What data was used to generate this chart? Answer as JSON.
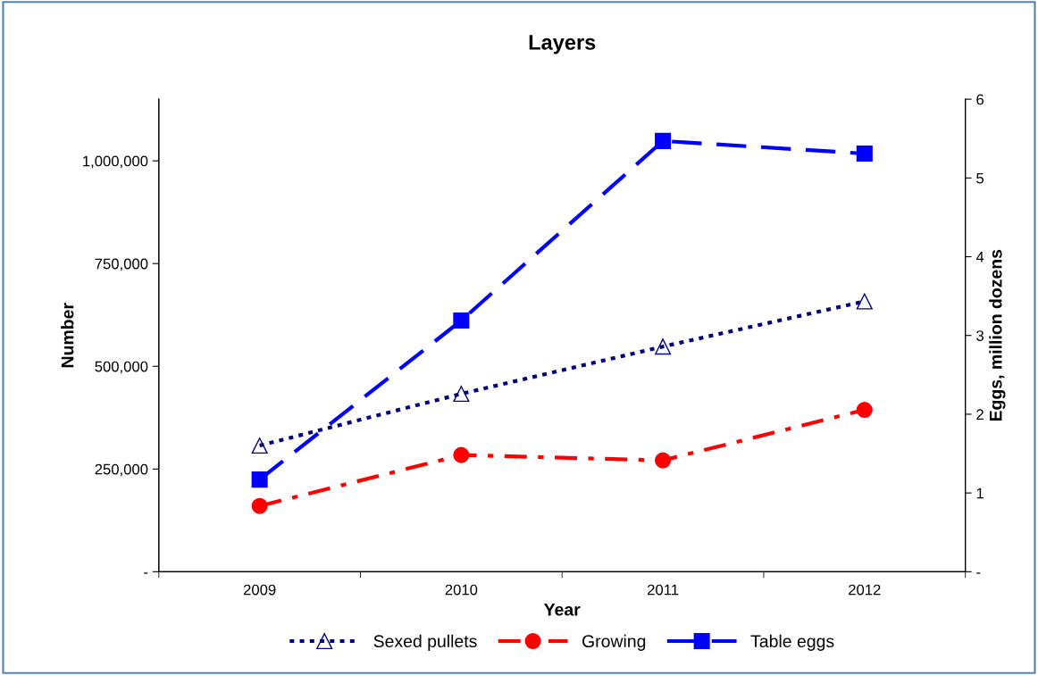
{
  "chart_data": {
    "type": "line",
    "title": "Layers",
    "xlabel": "Year",
    "ylabel": "Number",
    "y2label": "Eggs, million dozens",
    "categories": [
      "2009",
      "2010",
      "2011",
      "2012"
    ],
    "series": [
      {
        "name": "Sexed pullets",
        "color": "#000080",
        "values": [
          307000,
          433000,
          548000,
          658000
        ],
        "marker": "triangle",
        "line_style": "dotted"
      },
      {
        "name": "Growing",
        "color": "#ff0000",
        "values": [
          160000,
          284000,
          271000,
          394000
        ],
        "marker": "circle",
        "line_style": "dashdot"
      },
      {
        "name": "Table eggs",
        "color": "#0000ff",
        "values": [
          1.17,
          3.19,
          5.47,
          5.31
        ],
        "marker": "square",
        "line_style": "dashed",
        "axis": "y2"
      }
    ],
    "ylim": [
      0,
      1150000
    ],
    "yticks": [
      {
        "value": 0,
        "label": "-"
      },
      {
        "value": 250000,
        "label": "250,000"
      },
      {
        "value": 500000,
        "label": "500,000"
      },
      {
        "value": 750000,
        "label": "750,000"
      },
      {
        "value": 1000000,
        "label": "1,000,000"
      }
    ],
    "y2lim": [
      0,
      6
    ],
    "y2ticks": [
      {
        "value": 0,
        "label": "-"
      },
      1,
      2,
      3,
      4,
      5,
      6
    ],
    "grid": false,
    "legend": "bottom"
  }
}
